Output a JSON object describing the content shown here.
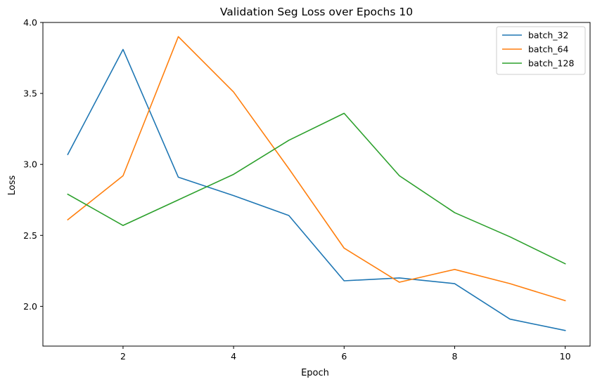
{
  "chart_data": {
    "type": "line",
    "title": "Validation Seg Loss over Epochs 10",
    "xlabel": "Epoch",
    "ylabel": "Loss",
    "x": [
      1,
      2,
      3,
      4,
      5,
      6,
      7,
      8,
      9,
      10
    ],
    "xlim": [
      0.55,
      10.45
    ],
    "ylim": [
      1.72,
      4.0
    ],
    "xticks": [
      2,
      4,
      6,
      8,
      10
    ],
    "yticks": [
      2.0,
      2.5,
      3.0,
      3.5,
      4.0
    ],
    "xtick_labels": [
      "2",
      "4",
      "6",
      "8",
      "10"
    ],
    "ytick_labels": [
      "2.0",
      "2.5",
      "3.0",
      "3.5",
      "4.0"
    ],
    "grid": false,
    "legend_position": "top-right",
    "series": [
      {
        "name": "batch_32",
        "color": "#1f77b4",
        "values": [
          3.07,
          3.81,
          2.91,
          2.78,
          2.64,
          2.18,
          2.2,
          2.16,
          1.91,
          1.83
        ]
      },
      {
        "name": "batch_64",
        "color": "#ff7f0e",
        "values": [
          2.61,
          2.92,
          3.9,
          3.51,
          2.97,
          2.41,
          2.17,
          2.26,
          2.16,
          2.04
        ]
      },
      {
        "name": "batch_128",
        "color": "#2ca02c",
        "values": [
          2.79,
          2.57,
          2.75,
          2.93,
          3.17,
          3.36,
          2.92,
          2.66,
          2.49,
          2.3
        ]
      }
    ]
  }
}
